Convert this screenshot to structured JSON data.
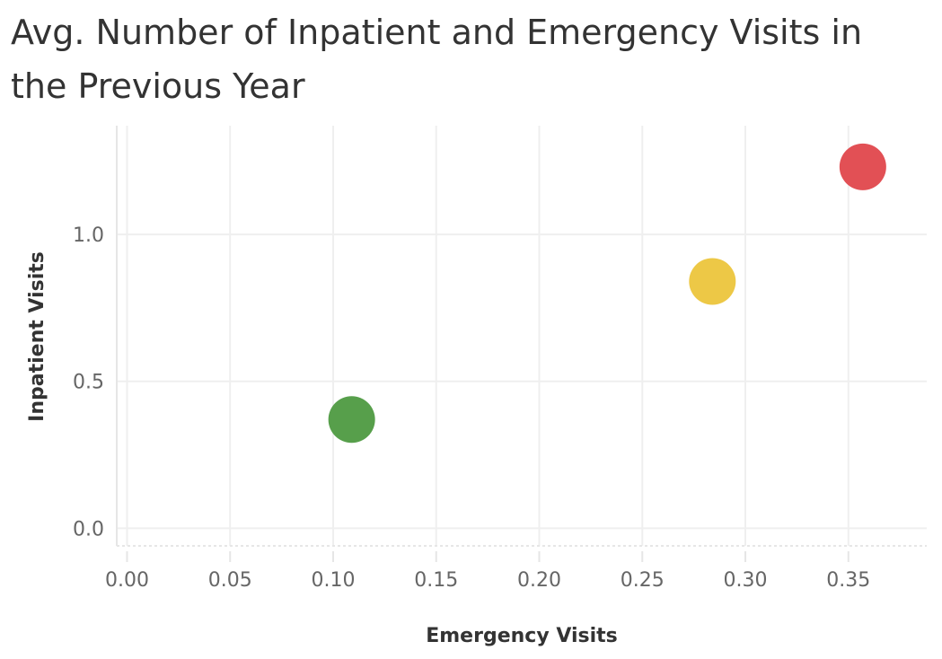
{
  "chart_data": {
    "type": "scatter",
    "title": "Avg. Number of Inpatient and Emergency Visits in the Previous Year",
    "xlabel": "Emergency Visits",
    "ylabel": "Inpatient Visits",
    "xlim": [
      -0.005,
      0.388
    ],
    "ylim": [
      -0.06,
      1.37
    ],
    "x_ticks": [
      "0.00",
      "0.05",
      "0.10",
      "0.15",
      "0.20",
      "0.25",
      "0.30",
      "0.35"
    ],
    "y_ticks": [
      "0.0",
      "0.5",
      "1.0"
    ],
    "grid": true,
    "legend": "none",
    "points": [
      {
        "x": 0.109,
        "y": 0.37,
        "color": "#4e9a41"
      },
      {
        "x": 0.284,
        "y": 0.84,
        "color": "#ecc53c"
      },
      {
        "x": 0.357,
        "y": 1.23,
        "color": "#e0474c"
      }
    ]
  }
}
